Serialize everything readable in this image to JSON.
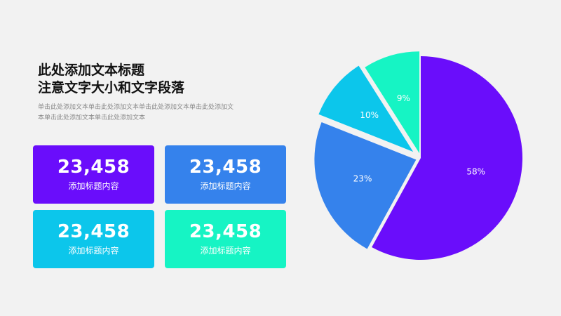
{
  "heading": {
    "line1": "此处添加文本标题",
    "line2": "注意文字大小和文字段落"
  },
  "description": {
    "line1": "单击此处添加文本单击此处添加文本单击此处添加文本单击此处添加文",
    "line2": "本单击此处添加文本单击此处添加文本"
  },
  "cards": [
    {
      "value": "23,458",
      "label": "添加标题内容",
      "color": "#6a0dfb"
    },
    {
      "value": "23,458",
      "label": "添加标题内容",
      "color": "#3582ec"
    },
    {
      "value": "23,458",
      "label": "添加标题内容",
      "color": "#0cc6eb"
    },
    {
      "value": "23,458",
      "label": "添加标题内容",
      "color": "#16f4c4"
    }
  ],
  "chart_data": {
    "type": "pie",
    "exploded": true,
    "slices": [
      {
        "label": "58%",
        "value": 58,
        "color": "#6a0dfb"
      },
      {
        "label": "23%",
        "value": 23,
        "color": "#3582ec"
      },
      {
        "label": "10%",
        "value": 10,
        "color": "#0cc6eb"
      },
      {
        "label": "9%",
        "value": 9,
        "color": "#16f4c4"
      }
    ]
  }
}
